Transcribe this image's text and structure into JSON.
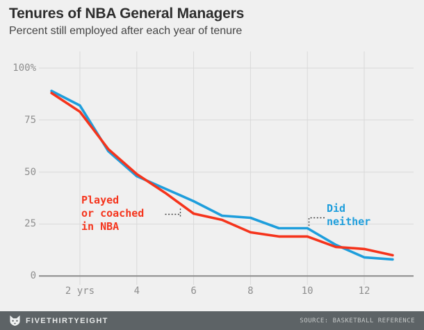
{
  "header": {
    "title": "Tenures of NBA General Managers",
    "subtitle": "Percent still employed after each year of tenure"
  },
  "chart_data": {
    "type": "line",
    "x": [
      1,
      2,
      3,
      4,
      5,
      6,
      7,
      8,
      9,
      10,
      11,
      12,
      13
    ],
    "series": [
      {
        "name": "Did neither",
        "color": "#1e9edc",
        "values": [
          89,
          82,
          60,
          48,
          42,
          36,
          29,
          28,
          23,
          23,
          15,
          9,
          8
        ]
      },
      {
        "name": "Played or coached in NBA",
        "color": "#f5341c",
        "values": [
          88,
          79,
          61,
          49,
          40,
          30,
          27,
          21,
          19,
          19,
          14,
          13,
          10
        ]
      }
    ],
    "xlim": [
      1,
      13
    ],
    "ylim": [
      0,
      100
    ],
    "x_ticks": [
      {
        "value": 2,
        "label": "2 yrs"
      },
      {
        "value": 4,
        "label": "4"
      },
      {
        "value": 6,
        "label": "6"
      },
      {
        "value": 8,
        "label": "8"
      },
      {
        "value": 10,
        "label": "10"
      },
      {
        "value": 12,
        "label": "12"
      }
    ],
    "y_ticks": [
      {
        "value": 100,
        "label": "100%"
      },
      {
        "value": 75,
        "label": "75"
      },
      {
        "value": 50,
        "label": "50"
      },
      {
        "value": 25,
        "label": "25"
      },
      {
        "value": 0,
        "label": "0"
      }
    ],
    "grid": "on",
    "legend_position": "inline-annotations"
  },
  "annotations": {
    "red": {
      "line1": "Played",
      "line2": "or coached",
      "line3": "in NBA",
      "color": "#f5341c"
    },
    "blue": {
      "line1": "Did",
      "line2": "neither",
      "color": "#1e9edc"
    }
  },
  "footer": {
    "brand": "FIVETHIRTYEIGHT",
    "source": "SOURCE: BASKETBALL REFERENCE"
  }
}
